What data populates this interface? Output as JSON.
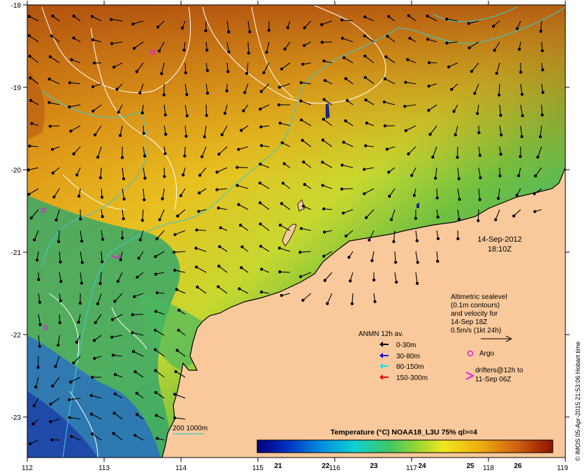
{
  "map": {
    "longitudes": [
      "112",
      "113",
      "114",
      "115",
      "116",
      "117",
      "118",
      "119"
    ],
    "latitudes": [
      "-18",
      "-19",
      "-20",
      "-21",
      "-22",
      "-23"
    ],
    "date": "14-Sep-2012",
    "time": "18:10Z"
  },
  "legend": {
    "altimetry": [
      "Altimetric sealevel",
      "(0.1m contours)",
      "and velocity for",
      "14-Sep 18Z",
      "0.5m/s (1kt 24h)"
    ],
    "anmn_title": "ANMN 12h av.",
    "anmn_items": [
      {
        "label": "0-30m",
        "color": "#000000"
      },
      {
        "label": "30-80m",
        "color": "#1010e0"
      },
      {
        "label": "80-150m",
        "color": "#20e0e0"
      },
      {
        "label": "150-300m",
        "color": "#e01010"
      }
    ],
    "argo_label": "Argo",
    "drifters_label": [
      "drifters@12h to",
      "11-Sep 06Z"
    ],
    "isobath_label": "200  1000m"
  },
  "colorbar": {
    "title": "Temperature (°C) NOAA18_L3U 75% ql>=4",
    "ticks": [
      "21",
      "22",
      "23",
      "24",
      "25",
      "26"
    ]
  },
  "credit": "© IMOS 05-Apr-2015 21:53:06 Hobart time",
  "colors": {
    "land": "#f9c99b",
    "argo": "#e020e0",
    "isobath": "#40c8c8",
    "contour": "#ffffff"
  }
}
